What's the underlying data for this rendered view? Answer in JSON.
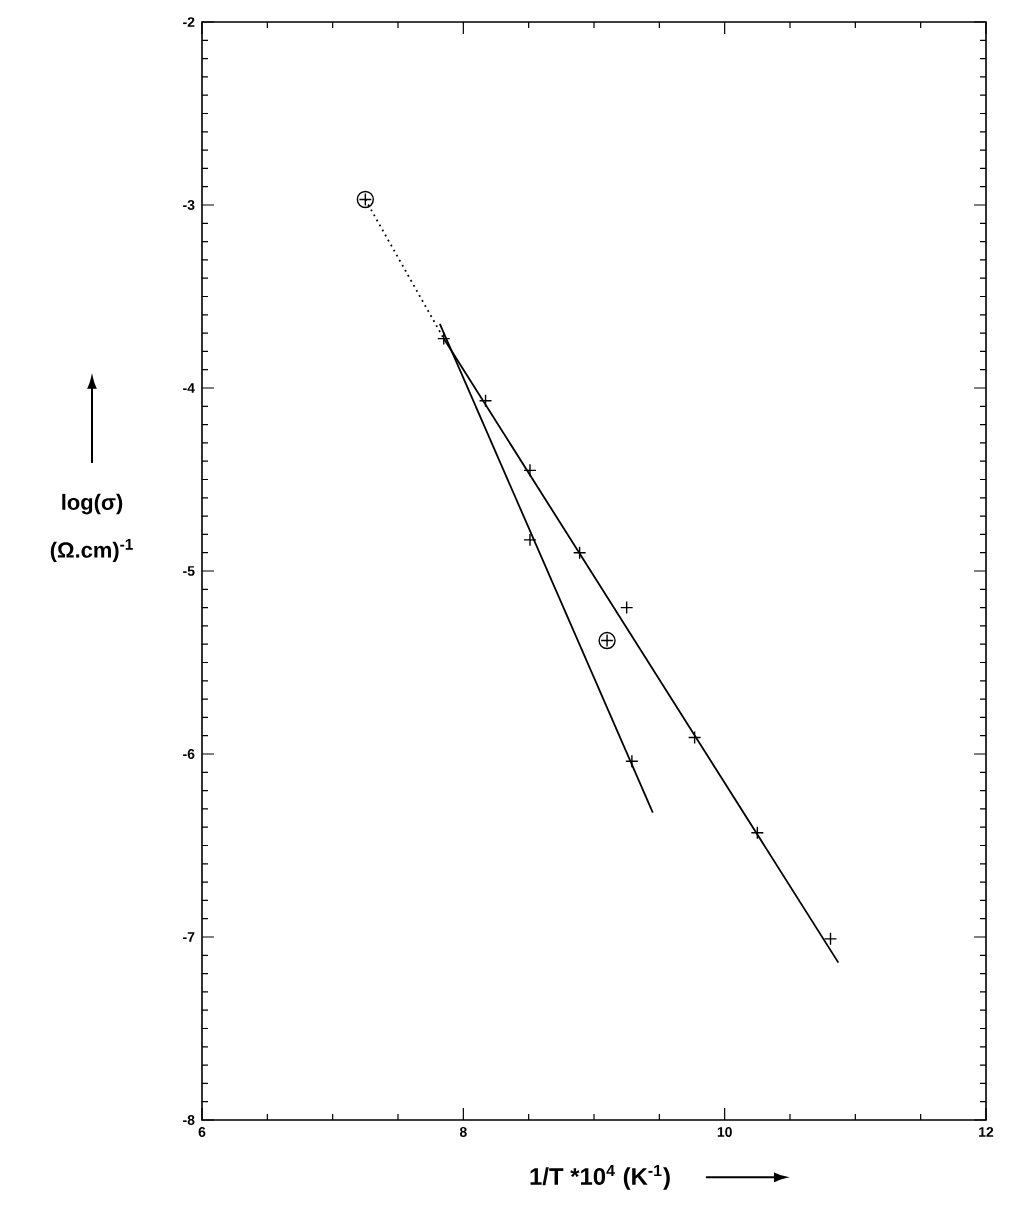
{
  "chart_data": {
    "type": "line",
    "xlabel": "1/T *10$^{4}$ (K$^{-1}$)",
    "ylabel": "log(σ) (Ω.cm)$^{-1}$",
    "xlim": [
      6,
      12
    ],
    "ylim": [
      -8,
      -2
    ],
    "xticks": [
      6,
      8,
      10,
      12
    ],
    "yticks": [
      -8,
      -7,
      -6,
      -5,
      -4,
      -3,
      -2
    ],
    "grid": false,
    "series": [
      {
        "color": "#000000",
        "marker": "none",
        "line_style": "solid",
        "x": [
          7.85,
          10.87
        ],
        "values": [
          -3.73,
          -7.14
        ]
      },
      {
        "color": "#000000",
        "marker": "none",
        "line_style": "solid",
        "x": [
          9.45,
          7.82
        ],
        "values": [
          -6.32,
          -3.65
        ]
      },
      {
        "color": "#000000",
        "marker": "none",
        "line_style": "dotted",
        "x": [
          7.25,
          7.85
        ],
        "values": [
          -2.97,
          -3.73
        ]
      },
      {
        "type": "scatter",
        "color": "#000000",
        "marker": "cross",
        "x": [
          7.85,
          8.17,
          8.51,
          8.89,
          9.25,
          9.77,
          10.25,
          10.81,
          8.51,
          9.29,
          7.25,
          9.1
        ],
        "values": [
          -3.73,
          -4.07,
          -4.45,
          -4.9,
          -5.2,
          -5.91,
          -6.43,
          -7.01,
          -4.83,
          -6.04,
          -2.97,
          -5.38
        ]
      },
      {
        "type": "scatter",
        "color": "#000000",
        "marker": "circle",
        "x": [
          7.25,
          9.1
        ],
        "values": [
          -2.97,
          -5.38
        ]
      }
    ]
  }
}
